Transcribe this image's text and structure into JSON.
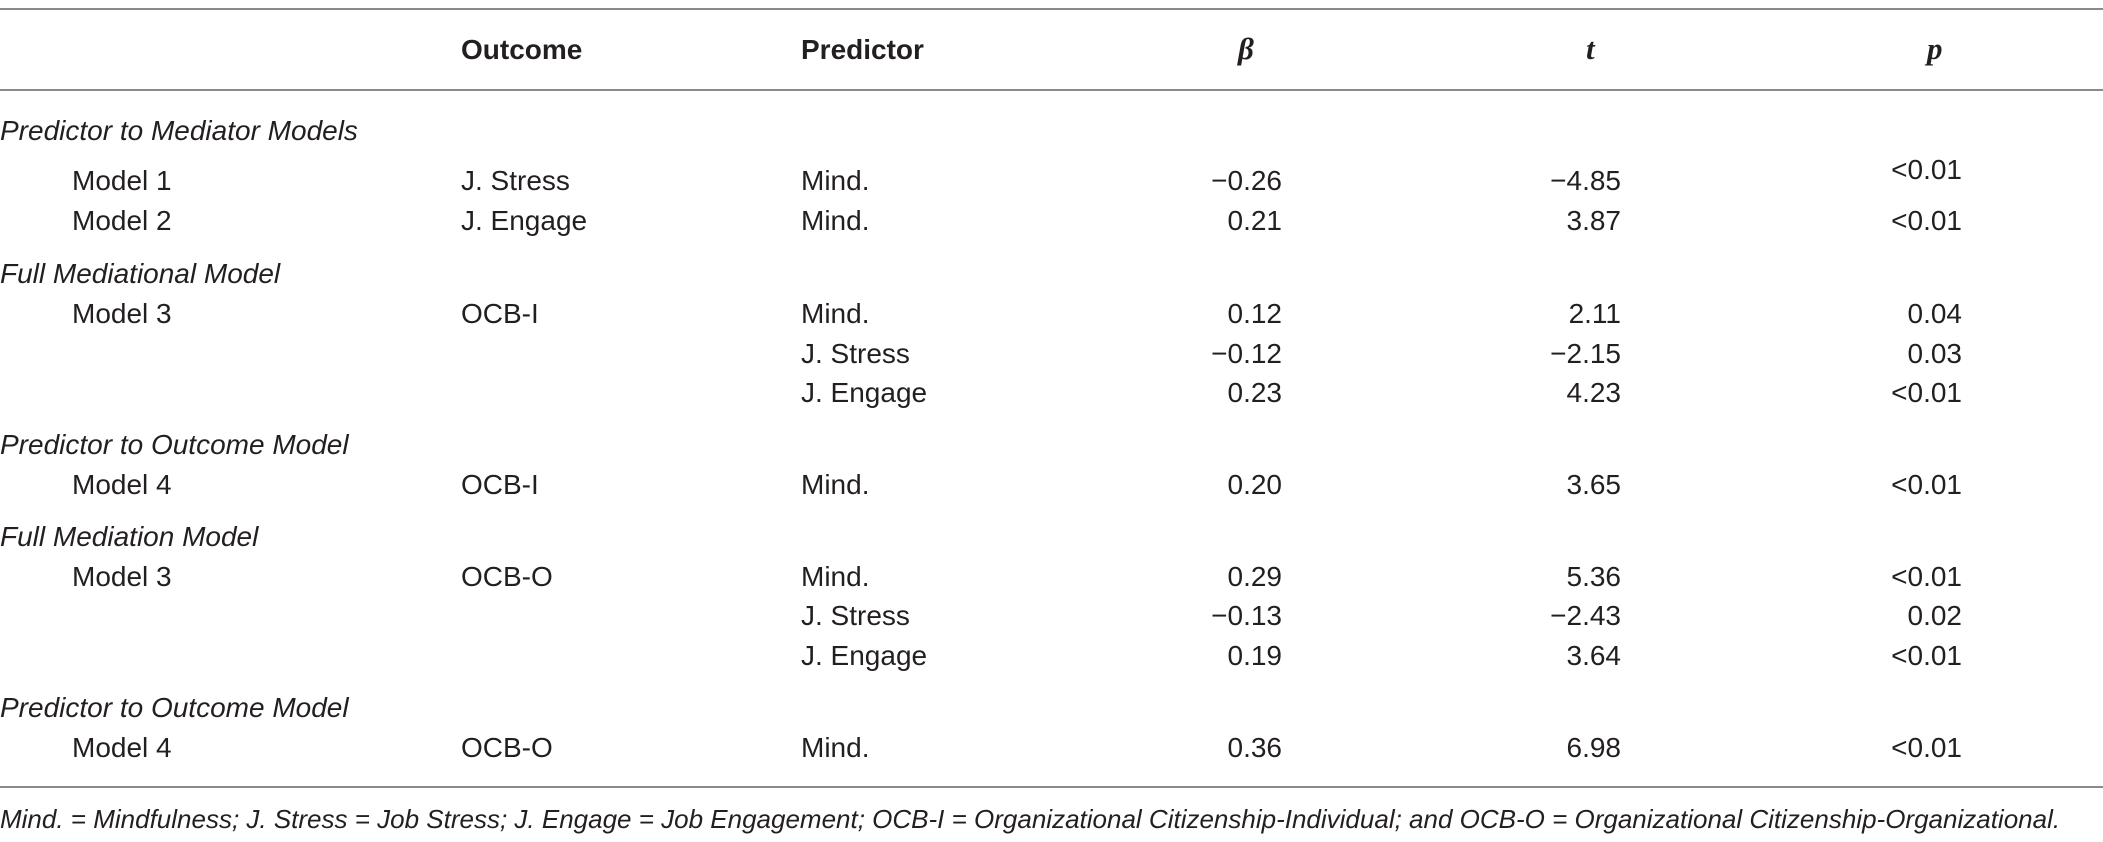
{
  "table": {
    "headers": {
      "label": "",
      "outcome": "Outcome",
      "predictor": "Predictor",
      "beta": "β",
      "t": "t",
      "p": "p"
    },
    "sections": [
      {
        "title": "Predictor to Mediator Models",
        "rows": [
          {
            "model": "Model 1",
            "outcome": "J. Stress",
            "predictor": "Mind.",
            "beta": "−0.26",
            "t": "−4.85",
            "p": "<0.01"
          },
          {
            "model": "Model 2",
            "outcome": "J. Engage",
            "predictor": "Mind.",
            "beta": "0.21",
            "t": "3.87",
            "p": "<0.01"
          }
        ]
      },
      {
        "title": "Full Mediational Model",
        "rows": [
          {
            "model": "Model 3",
            "outcome": "OCB-I",
            "predictor": "Mind.",
            "beta": "0.12",
            "t": "2.11",
            "p": "0.04"
          },
          {
            "model": "",
            "outcome": "",
            "predictor": "J. Stress",
            "beta": "−0.12",
            "t": "−2.15",
            "p": "0.03"
          },
          {
            "model": "",
            "outcome": "",
            "predictor": "J. Engage",
            "beta": "0.23",
            "t": "4.23",
            "p": "<0.01"
          }
        ]
      },
      {
        "title": "Predictor to Outcome Model",
        "rows": [
          {
            "model": "Model 4",
            "outcome": "OCB-I",
            "predictor": "Mind.",
            "beta": "0.20",
            "t": "3.65",
            "p": "<0.01"
          }
        ]
      },
      {
        "title": "Full Mediation Model",
        "rows": [
          {
            "model": "Model 3",
            "outcome": "OCB-O",
            "predictor": "Mind.",
            "beta": "0.29",
            "t": "5.36",
            "p": "<0.01"
          },
          {
            "model": "",
            "outcome": "",
            "predictor": "J. Stress",
            "beta": "−0.13",
            "t": "−2.43",
            "p": "0.02"
          },
          {
            "model": "",
            "outcome": "",
            "predictor": "J. Engage",
            "beta": "0.19",
            "t": "3.64",
            "p": "<0.01"
          }
        ]
      },
      {
        "title": "Predictor to Outcome Model",
        "rows": [
          {
            "model": "Model 4",
            "outcome": "OCB-O",
            "predictor": "Mind.",
            "beta": "0.36",
            "t": "6.98",
            "p": "<0.01"
          }
        ]
      }
    ],
    "footnote": "Mind. = Mindfulness; J. Stress = Job Stress; J. Engage = Job Engagement; OCB-I = Organizational Citizenship-Individual; and OCB-O = Organizational Citizenship-Organizational."
  }
}
